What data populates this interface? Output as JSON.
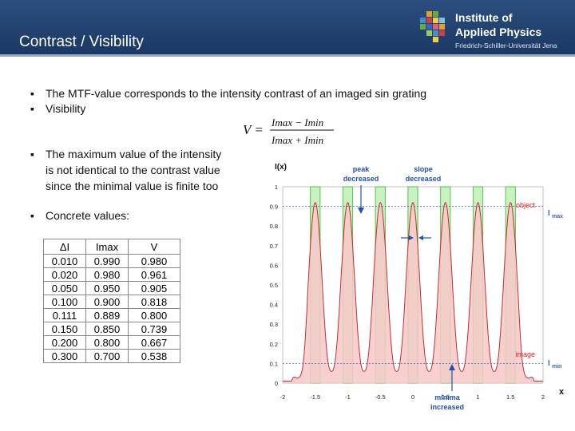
{
  "header": {
    "title": "Contrast / Visibility"
  },
  "logo": {
    "line1": "Institute of",
    "line2": "Applied Physics",
    "sub": "Friedrich-Schiller-Universität Jena"
  },
  "bullets": {
    "b1": "The MTF-value corresponds to the intensity contrast of an imaged sin grating",
    "b2": "Visibility",
    "b3_l1": "The maximum value of the intensity",
    "b3_l2": "is not identical to the contrast value",
    "b3_l3": "since the minimal value is finite too",
    "b4": "Concrete values:"
  },
  "formula": {
    "lhs": "V =",
    "num": "Imax − Imin",
    "den": "Imax + Imin"
  },
  "table": {
    "headers": [
      "ΔI",
      "Imax",
      "V"
    ],
    "rows": [
      [
        "0.010",
        "0.990",
        "0.980"
      ],
      [
        "0.020",
        "0.980",
        "0.961"
      ],
      [
        "0.050",
        "0.950",
        "0.905"
      ],
      [
        "0.100",
        "0.900",
        "0.818"
      ],
      [
        "0.111",
        "0.889",
        "0.800"
      ],
      [
        "0.150",
        "0.850",
        "0.739"
      ],
      [
        "0.200",
        "0.800",
        "0.667"
      ],
      [
        "0.300",
        "0.700",
        "0.538"
      ]
    ]
  },
  "chart_data": {
    "type": "line",
    "ylabel": "I(x)",
    "xlabel": "x",
    "xlim": [
      -2,
      2
    ],
    "ylim": [
      0,
      1
    ],
    "x_ticks": [
      -2,
      -1.5,
      -1,
      -0.5,
      0,
      0.5,
      1,
      1.5,
      2
    ],
    "y_ticks": [
      0,
      0.1,
      0.2,
      0.3,
      0.4,
      0.5,
      0.6,
      0.7,
      0.8,
      0.9,
      1
    ],
    "object_period": 0.5,
    "object_high_x": [
      -1.5,
      -1,
      -0.5,
      0,
      0.5,
      1,
      1.5
    ],
    "object_bar_width": 0.15,
    "image_peaks_x": [
      -1.5,
      -1,
      -0.5,
      0,
      0.5,
      1,
      1.5
    ],
    "image_peak_value": 0.92,
    "imax_level": 0.9,
    "imin_level": 0.1,
    "annotations": {
      "peak": "peak",
      "peak2": "decreased",
      "slope": "slope",
      "slope2": "decreased",
      "minima": "minima",
      "minima2": "increased",
      "object": "object",
      "image": "image",
      "imax": "I",
      "imax_sub": "max",
      "imin": "I",
      "imin_sub": "min"
    },
    "colors": {
      "object": "#c8f2c0",
      "object_edge": "#58c050",
      "image_fill": "#f8c8c8",
      "image_line": "#c03030",
      "ann": "#2050b0",
      "label": "#e02020",
      "level": "#4060c0"
    }
  }
}
